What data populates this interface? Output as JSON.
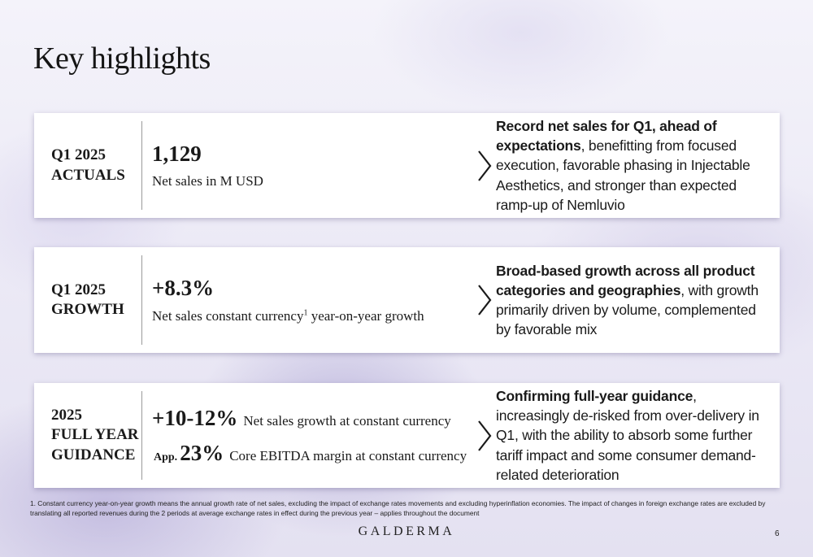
{
  "slide": {
    "title": "Key highlights",
    "page_number": "6",
    "logo": "GALDERMA"
  },
  "cards": [
    {
      "label_line1": "Q1 2025",
      "label_line2": "ACTUALS",
      "metric_value": "1,129",
      "metric_desc": "Net sales in M USD",
      "text_bold": "Record net sales for Q1, ahead of expectations",
      "text_rest": ", benefitting from focused execution, favorable phasing in Injectable Aesthetics, and stronger than expected ramp-up of Nemluvio"
    },
    {
      "label_line1": "Q1 2025",
      "label_line2": "GROWTH",
      "metric_value": "+8.3%",
      "metric_desc_before": "Net sales constant currency",
      "metric_desc_sup": "1",
      "metric_desc_after": " year-on-year growth",
      "text_bold": "Broad-based growth across all product categories and geographies",
      "text_rest": ", with growth primarily driven by volume, complemented by favorable mix"
    },
    {
      "label_line1": "2025",
      "label_line2": "FULL YEAR",
      "label_line3": "GUIDANCE",
      "row1_value": "+10-12%",
      "row1_desc": "Net sales growth at constant currency",
      "row2_prefix": "App.",
      "row2_value": "23%",
      "row2_desc": "Core EBITDA margin at constant currency",
      "text_bold": "Confirming full-year guidance",
      "text_rest": ", increasingly de-risked from over-delivery in Q1, with the ability to absorb some further tariff impact and some consumer demand-related deterioration"
    }
  ],
  "footnote": "1. Constant currency year-on-year growth means the annual growth rate of net sales, excluding the impact of exchange rates movements and excluding hyperinflation economies. The impact of changes in foreign exchange rates are excluded by translating all reported revenues during the 2 periods at average exchange rates in effect during the previous year – applies throughout the document",
  "colors": {
    "text": "#1a1a1a",
    "card_background": "#ffffff",
    "divider": "#9a9a9a",
    "background_tint": "#e4e1f1"
  },
  "icons": [
    "chevron-right-icon"
  ]
}
